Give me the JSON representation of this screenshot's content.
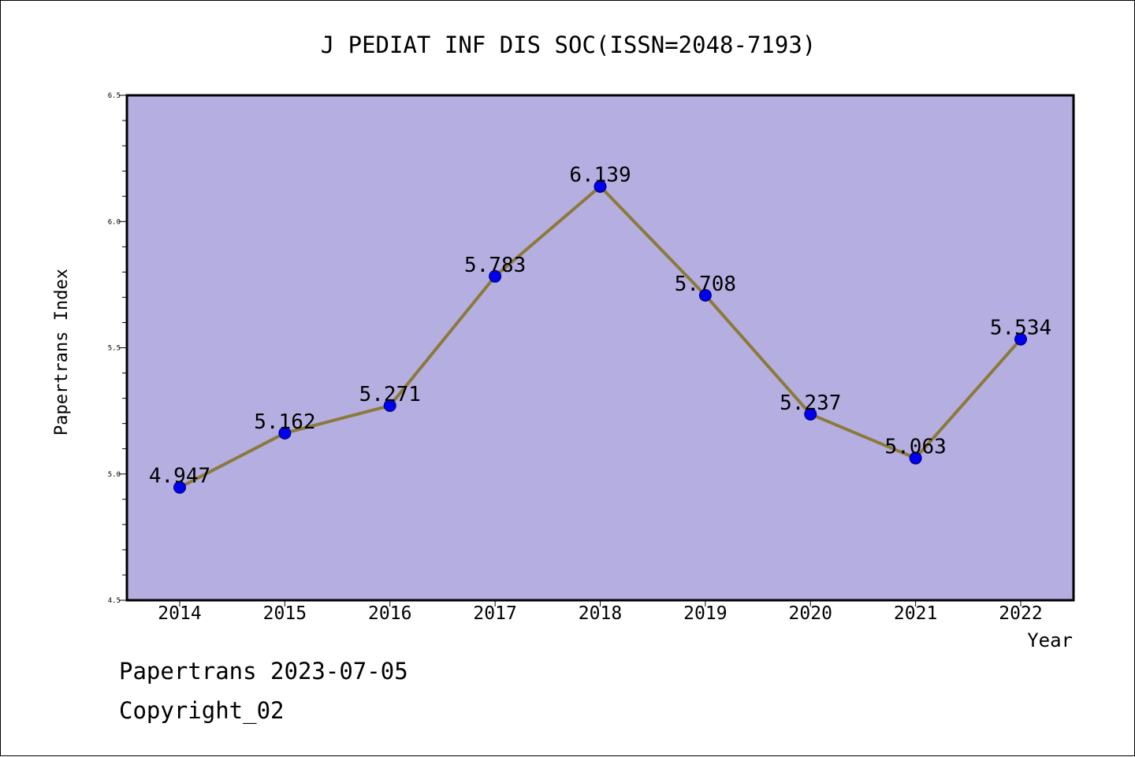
{
  "chart_data": {
    "type": "line",
    "title": "J PEDIAT INF DIS SOC(ISSN=2048-7193)",
    "xlabel": "Year",
    "ylabel": "Papertrans Index",
    "categories": [
      "2014",
      "2015",
      "2016",
      "2017",
      "2018",
      "2019",
      "2020",
      "2021",
      "2022"
    ],
    "values": [
      4.947,
      5.162,
      5.271,
      5.783,
      6.139,
      5.708,
      5.237,
      5.063,
      5.534
    ],
    "data_labels": [
      "4.947",
      "5.162",
      "5.271",
      "5.783",
      "6.139",
      "5.708",
      "5.237",
      "5.063",
      "5.534"
    ],
    "ylim": [
      4.5,
      6.5
    ],
    "yticks": [
      "4.5",
      "5.0",
      "5.5",
      "6.0",
      "6.5"
    ],
    "grid": false,
    "legend": "none",
    "colors": {
      "plot_background": "#b5aee1",
      "line": "#8b7a3a",
      "marker": "#0000ee",
      "frame": "#000000"
    }
  },
  "footer": {
    "line1": "Papertrans 2023-07-05",
    "line2": "Copyright_02"
  }
}
